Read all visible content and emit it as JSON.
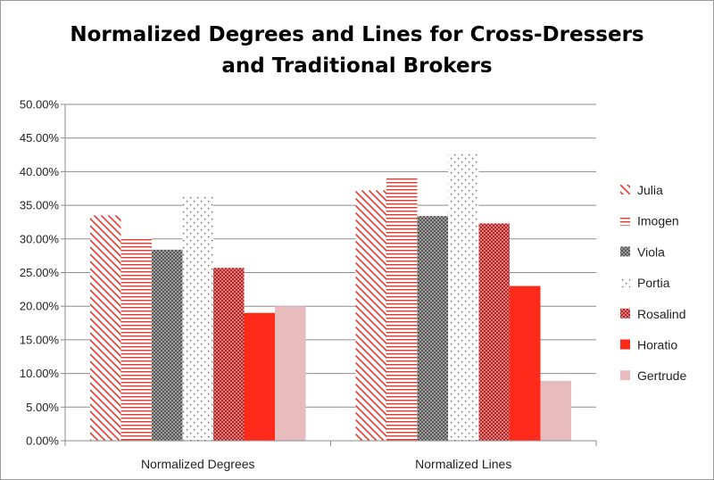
{
  "chart_data": {
    "type": "bar",
    "title_lines": [
      "Normalized Degrees and Lines for Cross-Dressers",
      "and Traditional Brokers"
    ],
    "categories": [
      "Normalized Degrees",
      "Normalized Lines"
    ],
    "ylim": [
      0,
      0.5
    ],
    "y_ticks": [
      "0.00%",
      "5.00%",
      "10.00%",
      "15.00%",
      "20.00%",
      "25.00%",
      "30.00%",
      "35.00%",
      "40.00%",
      "45.00%",
      "50.00%"
    ],
    "grid": true,
    "legend_position": "right",
    "series": [
      {
        "name": "Julia",
        "values": [
          0.335,
          0.372
        ],
        "color": "#e03a2e",
        "pattern": "diag"
      },
      {
        "name": "Imogen",
        "values": [
          0.302,
          0.393
        ],
        "color": "#e03a2e",
        "pattern": "hlines"
      },
      {
        "name": "Viola",
        "values": [
          0.284,
          0.334
        ],
        "color": "#808080",
        "pattern": "cross"
      },
      {
        "name": "Portia",
        "values": [
          0.363,
          0.428
        ],
        "color": "#666666",
        "pattern": "dots"
      },
      {
        "name": "Rosalind",
        "values": [
          0.257,
          0.323
        ],
        "color": "#c04040",
        "pattern": "checker"
      },
      {
        "name": "Horatio",
        "values": [
          0.19,
          0.23
        ],
        "color": "#ff2a1a",
        "pattern": "solid"
      },
      {
        "name": "Gertrude",
        "values": [
          0.2,
          0.089
        ],
        "color": "#e8bcbc",
        "pattern": "solid"
      }
    ]
  }
}
